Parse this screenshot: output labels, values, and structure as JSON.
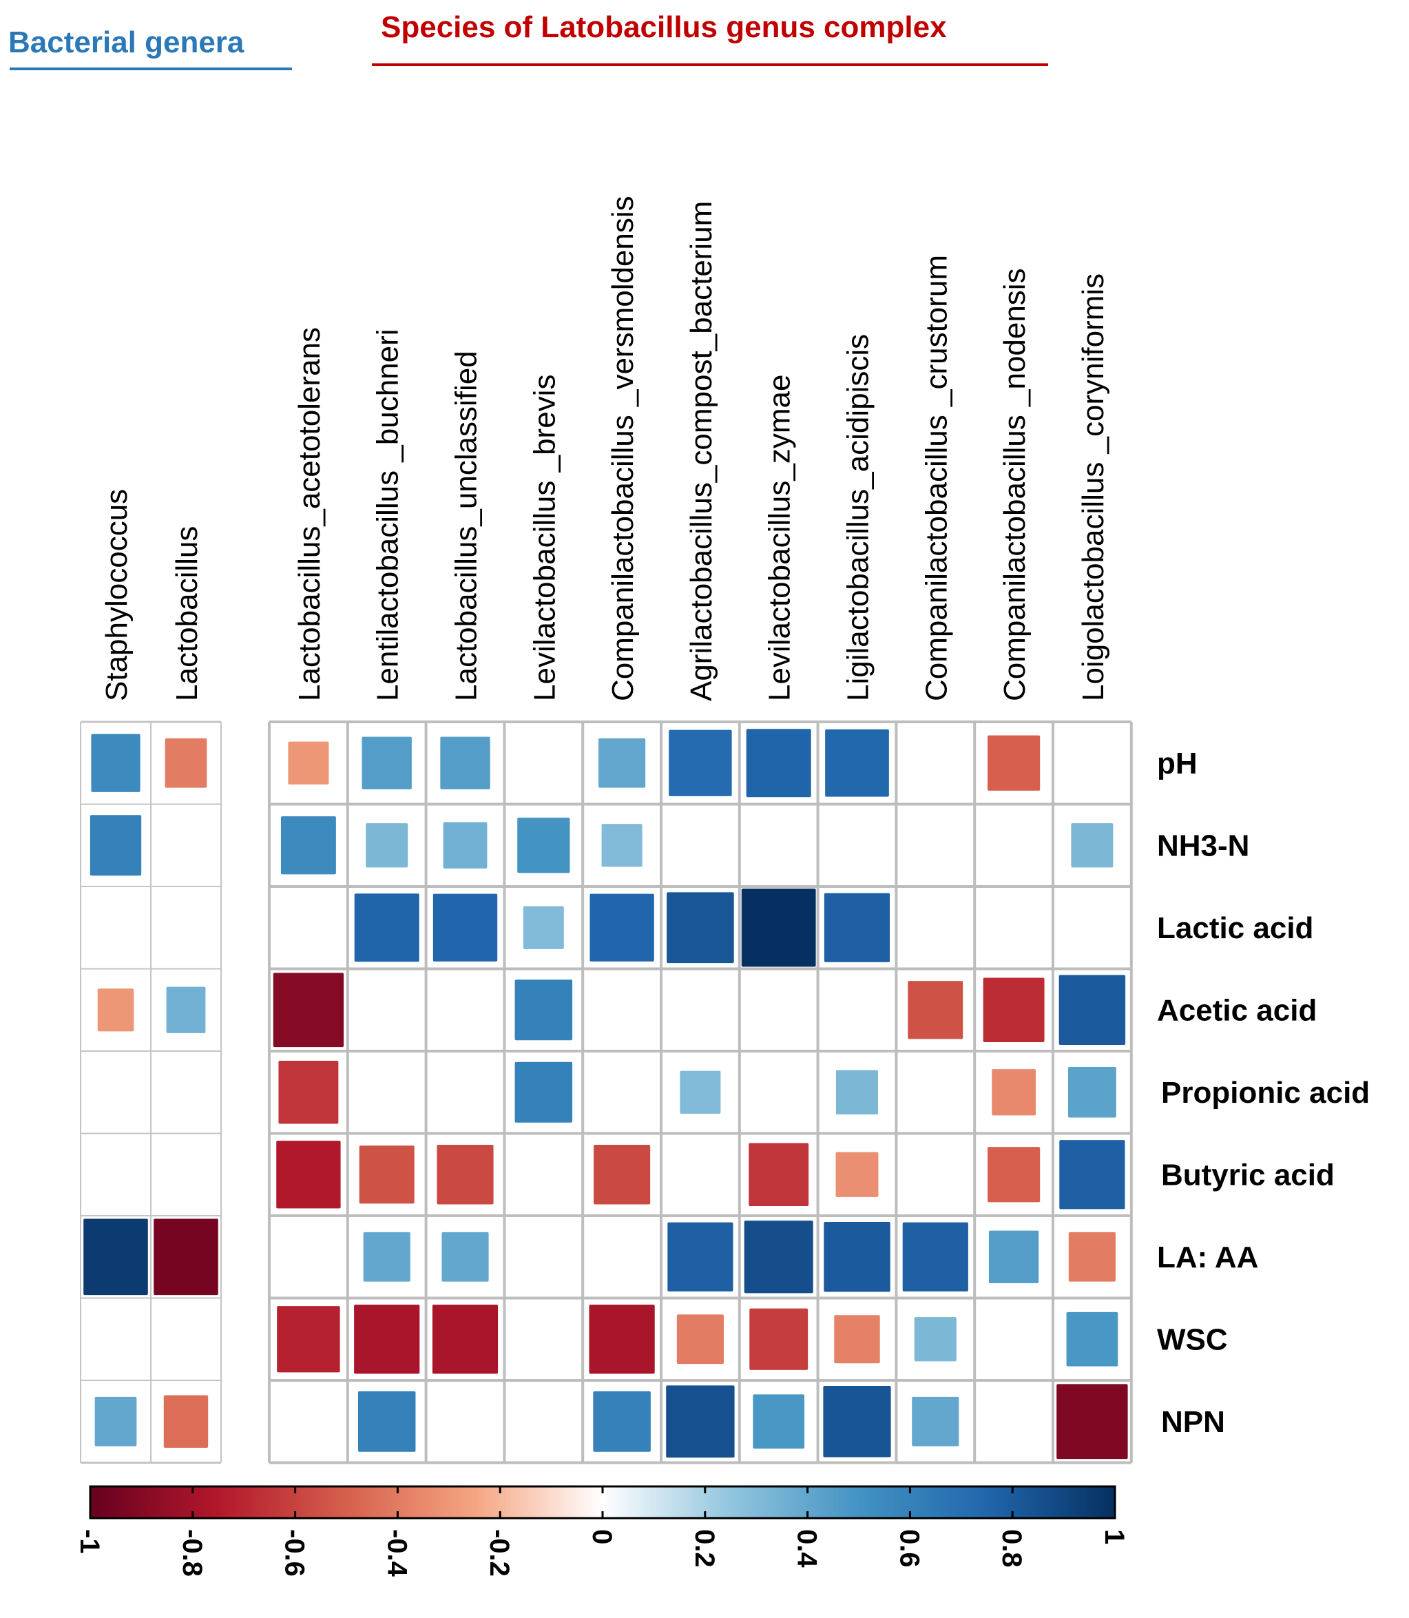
{
  "chart_data": {
    "type": "heatmap",
    "group_headers": [
      {
        "label": "Bacterial genera",
        "color": "#2b78b8"
      },
      {
        "label": "Species of Latobacillus genus complex",
        "color": "#c00000"
      }
    ],
    "genera": [
      "Staphylococcus",
      "Lactobacillus"
    ],
    "species": [
      "Lactobacillus_acetotolerans",
      "Lentilactobacillus _buchneri",
      "Lactobacillus_unclassified",
      "Levilactobacillus _brevis",
      "Companilactobacillus _versmoldensis",
      "Agrilactobacillus_compost_bacterium",
      "Levilactobacillus_zymae",
      "Ligilactobacillus_acidipiscis",
      "Companilactobacillus _crustorum",
      "Companilactobacillus _nodensis",
      "Loigolactobacillus _coryniformis"
    ],
    "rows": [
      "pH",
      "NH3-N",
      "Lactic acid",
      "Acetic acid",
      "Propionic acid",
      "Butyric acid",
      "LA: AA",
      "WSC",
      "NPN"
    ],
    "genera_values": [
      [
        0.55,
        -0.4
      ],
      [
        0.6,
        null
      ],
      [
        null,
        null
      ],
      [
        -0.3,
        0.35
      ],
      [
        null,
        null
      ],
      [
        null,
        null
      ],
      [
        0.95,
        -0.95
      ],
      [
        null,
        null
      ],
      [
        0.4,
        -0.45
      ]
    ],
    "species_values": [
      [
        -0.3,
        0.45,
        0.45,
        null,
        0.4,
        0.72,
        0.76,
        0.74,
        null,
        -0.5,
        null
      ],
      [
        0.55,
        0.32,
        0.35,
        0.5,
        0.3,
        null,
        null,
        null,
        null,
        null,
        0.32
      ],
      [
        null,
        0.76,
        0.75,
        0.3,
        0.75,
        0.82,
        1.0,
        0.78,
        null,
        null,
        null
      ],
      [
        -0.9,
        null,
        null,
        0.6,
        null,
        null,
        null,
        null,
        -0.55,
        -0.68,
        0.8
      ],
      [
        -0.65,
        null,
        null,
        0.6,
        null,
        0.3,
        null,
        0.32,
        null,
        -0.35,
        0.42
      ],
      [
        -0.75,
        -0.55,
        -0.58,
        null,
        -0.58,
        null,
        -0.65,
        -0.33,
        null,
        -0.5,
        0.78
      ],
      [
        null,
        0.4,
        0.4,
        null,
        null,
        0.78,
        0.86,
        0.8,
        0.78,
        0.45,
        -0.4
      ],
      [
        -0.72,
        -0.78,
        -0.78,
        null,
        -0.78,
        -0.4,
        -0.62,
        -0.38,
        0.32,
        null,
        0.48
      ],
      [
        null,
        0.6,
        null,
        null,
        0.6,
        0.85,
        0.48,
        0.83,
        0.4,
        null,
        -0.92
      ]
    ],
    "colorbar": {
      "min": -1,
      "max": 1,
      "ticks": [
        "-1",
        "-0.8",
        "-0.6",
        "-0.4",
        "-0.2",
        "0",
        "0.2",
        "0.4",
        "0.6",
        "0.8",
        "1"
      ]
    }
  }
}
